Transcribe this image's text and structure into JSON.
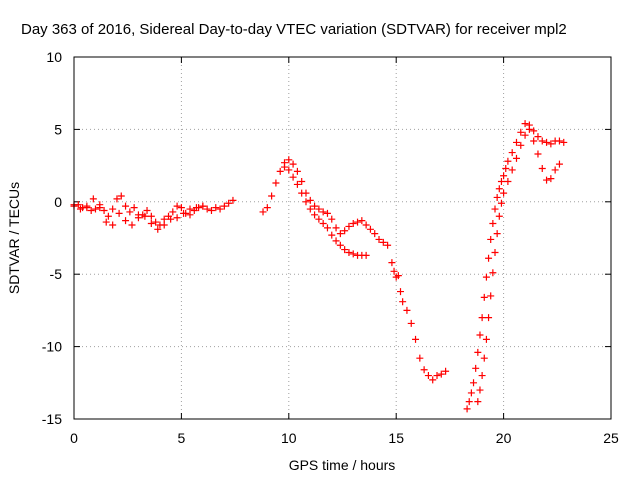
{
  "chart_data": {
    "type": "scatter",
    "title": "Day 363 of 2016, Sidereal Day-to-day VTEC variation (SDTVAR) for receiver mpl2",
    "xlabel": "GPS time / hours",
    "ylabel": "SDTVAR / TECUs",
    "xlim": [
      0,
      25
    ],
    "ylim": [
      -15,
      10
    ],
    "x_ticks": [
      0,
      5,
      10,
      15,
      20,
      25
    ],
    "y_ticks": [
      -15,
      -10,
      -5,
      0,
      5,
      10
    ],
    "x_tick_labels": [
      "0",
      "5",
      "10",
      "15",
      "20",
      "25"
    ],
    "y_tick_labels": [
      "-15",
      "-10",
      "-5",
      "0",
      "5",
      "10"
    ],
    "grid": true,
    "marker": "plus",
    "color": "#ff0000",
    "series": [
      {
        "name": "SDTVAR",
        "x": [
          0.0,
          0.2,
          0.4,
          0.6,
          0.8,
          1.0,
          1.2,
          1.4,
          1.6,
          1.8,
          2.0,
          2.2,
          2.4,
          2.6,
          2.8,
          3.0,
          3.2,
          3.4,
          3.6,
          3.8,
          4.0,
          4.2,
          4.4,
          4.6,
          4.8,
          5.0,
          5.2,
          5.4,
          5.6,
          5.8,
          6.0,
          6.2,
          6.4,
          6.6,
          6.8,
          7.0,
          7.2,
          7.4,
          0.0,
          0.3,
          0.6,
          0.9,
          1.2,
          1.5,
          1.8,
          2.1,
          2.4,
          2.7,
          3.0,
          3.3,
          3.6,
          3.9,
          4.2,
          4.5,
          4.8,
          5.1,
          5.4,
          5.7,
          6.0,
          8.8,
          9.0,
          9.2,
          9.4,
          9.6,
          9.8,
          10.0,
          10.2,
          10.4,
          10.6,
          10.8,
          11.0,
          11.2,
          11.4,
          11.6,
          11.8,
          12.0,
          12.2,
          12.4,
          12.6,
          12.8,
          13.0,
          13.2,
          13.4,
          13.6,
          13.8,
          14.0,
          14.2,
          14.4,
          14.6,
          9.8,
          10.0,
          10.2,
          10.4,
          10.6,
          10.8,
          11.0,
          11.2,
          11.4,
          11.6,
          11.8,
          12.0,
          12.2,
          12.4,
          12.6,
          12.8,
          13.0,
          13.2,
          13.4,
          13.6,
          14.8,
          14.9,
          15.0,
          15.1,
          15.2,
          15.3,
          15.5,
          15.7,
          15.9,
          16.1,
          16.3,
          16.5,
          16.7,
          16.9,
          17.1,
          17.3,
          18.3,
          18.4,
          18.5,
          18.6,
          18.7,
          18.8,
          18.9,
          19.0,
          19.1,
          19.2,
          19.3,
          19.4,
          19.5,
          19.6,
          19.7,
          19.8,
          19.9,
          20.0,
          20.1,
          20.2,
          20.4,
          20.6,
          20.8,
          21.0,
          21.2,
          21.4,
          21.6,
          21.8,
          22.0,
          22.2,
          22.4,
          22.6,
          22.8,
          18.8,
          18.9,
          19.0,
          19.1,
          19.2,
          19.3,
          19.4,
          19.5,
          19.6,
          19.7,
          19.8,
          19.9,
          20.0,
          20.2,
          20.4,
          20.6,
          20.8,
          21.0,
          21.2,
          21.4,
          21.6,
          21.8,
          22.0,
          22.2,
          22.4,
          22.6
        ],
        "y": [
          -0.3,
          -0.2,
          -0.4,
          -0.3,
          -0.6,
          -0.5,
          -0.2,
          -0.6,
          -1.0,
          -0.5,
          0.2,
          0.4,
          -0.3,
          -0.7,
          -0.4,
          -1.1,
          -0.9,
          -0.6,
          -1.0,
          -1.4,
          -1.6,
          -1.2,
          -1.0,
          -0.7,
          -0.3,
          -0.4,
          -0.8,
          -0.5,
          -0.6,
          -0.4,
          -0.3,
          -0.5,
          -0.6,
          -0.4,
          -0.5,
          -0.3,
          -0.1,
          0.1,
          -0.2,
          -0.5,
          -0.4,
          0.2,
          -0.4,
          -1.4,
          -1.6,
          -0.8,
          -1.3,
          -1.6,
          -0.9,
          -1.0,
          -1.5,
          -1.9,
          -1.6,
          -1.2,
          -1.1,
          -0.8,
          -0.9,
          -0.4,
          -0.3,
          -0.7,
          -0.4,
          0.4,
          1.3,
          2.1,
          2.7,
          2.9,
          2.6,
          2.1,
          1.4,
          0.6,
          0.1,
          -0.3,
          -0.5,
          -0.7,
          -0.8,
          -1.2,
          -1.8,
          -2.2,
          -2.0,
          -1.7,
          -1.5,
          -1.4,
          -1.3,
          -1.6,
          -1.9,
          -2.2,
          -2.6,
          -2.8,
          -3.0,
          2.4,
          2.2,
          1.7,
          1.2,
          0.6,
          0.0,
          -0.5,
          -0.9,
          -1.2,
          -1.5,
          -1.8,
          -2.3,
          -2.7,
          -3.0,
          -3.3,
          -3.5,
          -3.6,
          -3.7,
          -3.7,
          -3.7,
          -4.2,
          -4.8,
          -5.2,
          -5.1,
          -6.2,
          -6.9,
          -7.5,
          -8.4,
          -9.5,
          -10.8,
          -11.6,
          -12.0,
          -12.3,
          -12.0,
          -11.9,
          -11.7,
          -14.3,
          -13.8,
          -13.2,
          -12.5,
          -11.5,
          -10.4,
          -9.2,
          -8.0,
          -6.6,
          -5.2,
          -3.9,
          -2.6,
          -1.5,
          -0.5,
          0.3,
          0.9,
          1.4,
          1.8,
          2.3,
          2.8,
          3.4,
          4.1,
          4.8,
          5.4,
          5.3,
          4.9,
          4.5,
          4.2,
          4.1,
          4.0,
          4.2,
          4.2,
          4.1,
          -13.8,
          -13.0,
          -12.0,
          -10.8,
          -9.5,
          -8.0,
          -6.5,
          -4.9,
          -3.5,
          -2.2,
          -1.0,
          -0.1,
          0.6,
          1.4,
          2.2,
          3.0,
          3.9,
          4.6,
          5.0,
          4.2,
          3.3,
          2.3,
          1.5,
          1.6,
          2.2,
          2.6
        ]
      }
    ]
  }
}
